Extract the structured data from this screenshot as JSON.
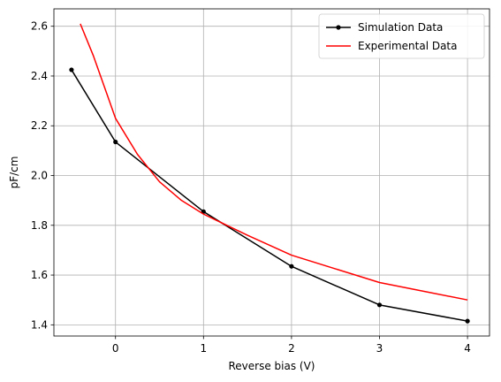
{
  "chart_data": {
    "type": "line",
    "title": "",
    "xlabel": "Reverse bias (V)",
    "ylabel": "pF/cm",
    "xlim": [
      -0.7,
      4.25
    ],
    "ylim": [
      1.355,
      2.67
    ],
    "xticks": [
      0,
      1,
      2,
      3,
      4
    ],
    "yticks": [
      1.4,
      1.6,
      1.8,
      2.0,
      2.2,
      2.4,
      2.6
    ],
    "grid": true,
    "legend_position": "top-right",
    "series": [
      {
        "name": "Simulation Data",
        "color": "#000000",
        "marker": "dot",
        "x": [
          -0.5,
          0,
          1,
          2,
          3,
          4
        ],
        "y": [
          2.425,
          2.135,
          1.855,
          1.635,
          1.48,
          1.415
        ]
      },
      {
        "name": "Experimental Data",
        "color": "#ff0000",
        "marker": "none",
        "x": [
          -0.4,
          -0.25,
          -0.1,
          0,
          0.25,
          0.5,
          0.75,
          1,
          1.5,
          2,
          2.5,
          3,
          3.5,
          4
        ],
        "y": [
          2.61,
          2.48,
          2.33,
          2.23,
          2.085,
          1.975,
          1.9,
          1.845,
          1.76,
          1.68,
          1.625,
          1.57,
          1.535,
          1.5
        ]
      }
    ]
  }
}
